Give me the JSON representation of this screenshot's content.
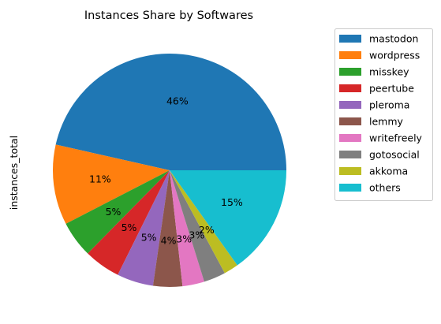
{
  "chart_data": {
    "type": "pie",
    "title": "Instances Share by Softwares",
    "ylabel": "instances_total",
    "legend_position": "outside-top-right",
    "slices": [
      {
        "label": "mastodon",
        "value": 46,
        "pct_label": "46%",
        "color": "#1f77b4"
      },
      {
        "label": "wordpress",
        "value": 11,
        "pct_label": "11%",
        "color": "#ff7f0e"
      },
      {
        "label": "misskey",
        "value": 5,
        "pct_label": "5%",
        "color": "#2ca02c"
      },
      {
        "label": "peertube",
        "value": 5,
        "pct_label": "5%",
        "color": "#d62728"
      },
      {
        "label": "pleroma",
        "value": 5,
        "pct_label": "5%",
        "color": "#9467bd"
      },
      {
        "label": "lemmy",
        "value": 4,
        "pct_label": "4%",
        "color": "#8c564b"
      },
      {
        "label": "writefreely",
        "value": 3,
        "pct_label": "3%",
        "color": "#e377c2"
      },
      {
        "label": "gotosocial",
        "value": 3,
        "pct_label": "3%",
        "color": "#7f7f7f"
      },
      {
        "label": "akkoma",
        "value": 2,
        "pct_label": "2%",
        "color": "#bcbd22"
      },
      {
        "label": "others",
        "value": 15,
        "pct_label": "15%",
        "color": "#17becf"
      }
    ]
  }
}
